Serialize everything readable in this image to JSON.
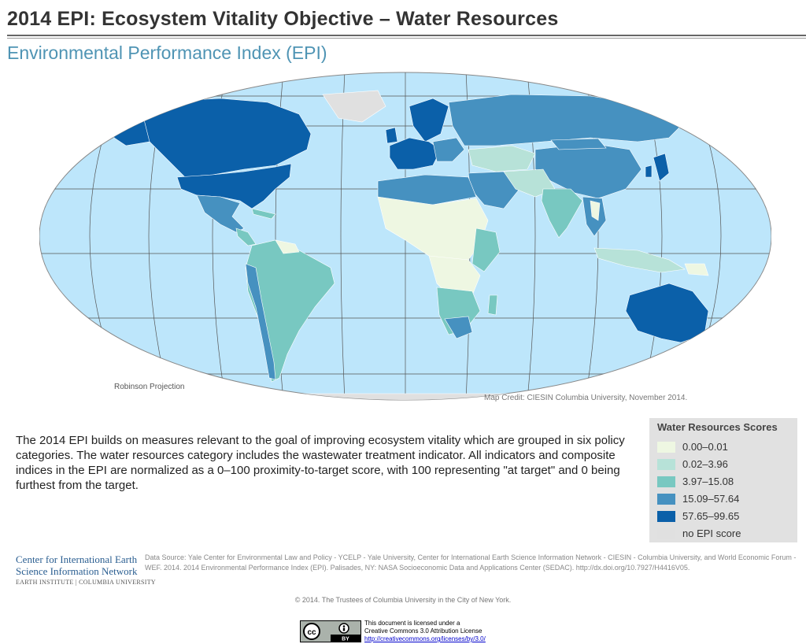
{
  "header": {
    "title": "2014 EPI: Ecosystem Vitality Objective – Water Resources",
    "subtitle": "Environmental Performance Index (EPI)"
  },
  "map": {
    "projection_label": "Robinson Projection",
    "credit": "Map Credit: CIESIN Columbia University, November 2014.",
    "ocean_color": "#bde6fb",
    "graticule_color": "#555555"
  },
  "description": "The 2014 EPI builds on measures relevant to the goal of improving ecosystem vitality which are grouped in six policy categories. The water resources category includes the wastewater treatment indicator. All indicators and composite indices in the EPI are normalized as a 0–100 proximity-to-target score, with 100 representing \"at target\" and 0 being furthest from the target.",
  "legend": {
    "title": "Water Resources Scores",
    "items": [
      {
        "label": "0.00–0.01",
        "color": "#eef7e2"
      },
      {
        "label": "0.02–3.96",
        "color": "#b7e2d8"
      },
      {
        "label": "3.97–15.08",
        "color": "#78c8c1"
      },
      {
        "label": "15.09–57.64",
        "color": "#4691c0"
      },
      {
        "label": "57.65–99.65",
        "color": "#0b60a9"
      },
      {
        "label": "no EPI score",
        "color": "#e0e0e0"
      }
    ]
  },
  "footer": {
    "org_line1": "Center for International Earth",
    "org_line2": "Science Information Network",
    "org_line3": "EARTH INSTITUTE | COLUMBIA UNIVERSITY",
    "data_source": "Data Source: Yale Center for Environmental Law and Policy - YCELP - Yale University, Center for International Earth Science Information Network - CIESIN - Columbia University, and World Economic Forum - WEF. 2014. 2014 Environmental Performance Index (EPI). Palisades, NY: NASA Socioeconomic Data and Applications Center (SEDAC). http://dx.doi.org/10.7927/H4416V05.",
    "copyright": "© 2014. The Trustees of Columbia University in the City of New York.",
    "license_line1": "This document is licensed under a",
    "license_line2": "Creative Commons 3.0 Attribution License",
    "license_url": "http://creativecommons.org/licenses/by/3.0/",
    "cc_label": "cc",
    "by_label": "BY"
  }
}
